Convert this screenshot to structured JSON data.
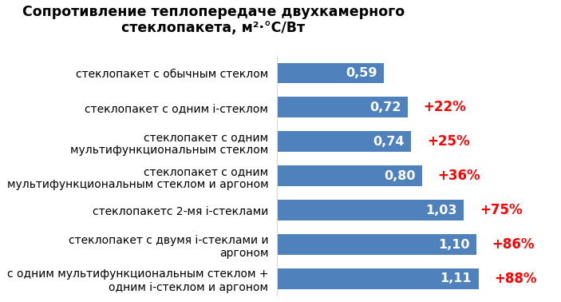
{
  "chart_data": {
    "type": "bar",
    "orientation": "horizontal",
    "title": "Сопротивление теплопередаче двухкамерного стеклопакета, м²·°С/Вт",
    "categories": [
      "стеклопакет с обычным стеклом",
      "стеклопакет с одним i-стеклом",
      "стеклопакет с одним мультифункциональным стеклом",
      "стеклопакет с одним мультифункциональным стеклом и аргоном",
      "стеклопакетс 2-мя i-стеклами",
      "стеклопакет с двумя i-стеклами и аргоном",
      "с одним мультифункциональным стеклом + одним i-стеклом и аргоном"
    ],
    "values": [
      0.59,
      0.72,
      0.74,
      0.8,
      1.03,
      1.1,
      1.11
    ],
    "value_labels": [
      "0,59",
      "0,72",
      "0,74",
      "0,80",
      "1,03",
      "1,10",
      "1,11"
    ],
    "annotations": [
      null,
      "+22%",
      "+25%",
      "+36%",
      "+75%",
      "+86%",
      "+88%"
    ],
    "color": "#4f81bd",
    "xlim": [
      0,
      1.55
    ],
    "xticks": [],
    "data_labels": true,
    "tick_labels": "y",
    "grid": false
  }
}
